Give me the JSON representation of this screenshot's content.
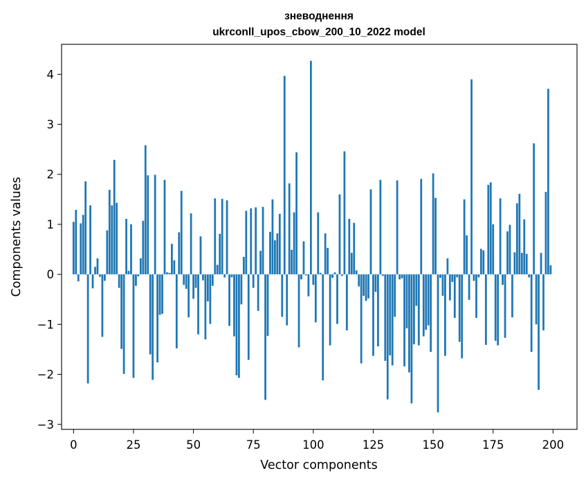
{
  "chart_data": {
    "type": "bar",
    "title": "зневоднення",
    "subtitle": "ukrconll_upos_cbow_200_10_2022 model",
    "xlabel": "Vector components",
    "ylabel": "Components values",
    "xlim": [
      -5,
      210
    ],
    "ylim": [
      -3.1,
      4.6
    ],
    "xticks": [
      0,
      25,
      50,
      75,
      100,
      125,
      150,
      175,
      200
    ],
    "yticks": [
      -3,
      -2,
      -1,
      0,
      1,
      2,
      3,
      4
    ],
    "xtick_labels": [
      "0",
      "25",
      "50",
      "75",
      "100",
      "125",
      "150",
      "175",
      "200"
    ],
    "ytick_labels": [
      "−3",
      "−2",
      "−1",
      "0",
      "1",
      "2",
      "3",
      "4"
    ],
    "bar_color": "#1f77b4",
    "grid": false,
    "x": [
      0,
      1,
      2,
      3,
      4,
      5,
      6,
      7,
      8,
      9,
      10,
      11,
      12,
      13,
      14,
      15,
      16,
      17,
      18,
      19,
      20,
      21,
      22,
      23,
      24,
      25,
      26,
      27,
      28,
      29,
      30,
      31,
      32,
      33,
      34,
      35,
      36,
      37,
      38,
      39,
      40,
      41,
      42,
      43,
      44,
      45,
      46,
      47,
      48,
      49,
      50,
      51,
      52,
      53,
      54,
      55,
      56,
      57,
      58,
      59,
      60,
      61,
      62,
      63,
      64,
      65,
      66,
      67,
      68,
      69,
      70,
      71,
      72,
      73,
      74,
      75,
      76,
      77,
      78,
      79,
      80,
      81,
      82,
      83,
      84,
      85,
      86,
      87,
      88,
      89,
      90,
      91,
      92,
      93,
      94,
      95,
      96,
      97,
      98,
      99,
      100,
      101,
      102,
      103,
      104,
      105,
      106,
      107,
      108,
      109,
      110,
      111,
      112,
      113,
      114,
      115,
      116,
      117,
      118,
      119,
      120,
      121,
      122,
      123,
      124,
      125,
      126,
      127,
      128,
      129,
      130,
      131,
      132,
      133,
      134,
      135,
      136,
      137,
      138,
      139,
      140,
      141,
      142,
      143,
      144,
      145,
      146,
      147,
      148,
      149,
      150,
      151,
      152,
      153,
      154,
      155,
      156,
      157,
      158,
      159,
      160,
      161,
      162,
      163,
      164,
      165,
      166,
      167,
      168,
      169,
      170,
      171,
      172,
      173,
      174,
      175,
      176,
      177,
      178,
      179,
      180,
      181,
      182,
      183,
      184,
      185,
      186,
      187,
      188,
      189,
      190,
      191,
      192,
      193,
      194,
      195,
      196,
      197,
      198,
      199
    ],
    "values": [
      1.05,
      1.29,
      -0.14,
      1.02,
      1.19,
      1.86,
      -2.18,
      1.38,
      -0.28,
      0.15,
      0.32,
      -0.05,
      -1.25,
      -0.13,
      0.88,
      1.69,
      1.38,
      2.29,
      1.43,
      -0.27,
      -1.49,
      -1.99,
      1.11,
      0.07,
      1.0,
      -2.07,
      -0.23,
      -0.04,
      0.32,
      1.07,
      2.58,
      1.98,
      -1.6,
      -2.11,
      1.99,
      -1.76,
      -0.81,
      -0.79,
      1.89,
      0.04,
      0.03,
      0.61,
      0.28,
      -1.48,
      0.84,
      1.67,
      -0.21,
      -0.29,
      -0.86,
      1.22,
      -0.49,
      -0.27,
      -1.2,
      0.76,
      -0.12,
      -1.3,
      -0.54,
      -0.99,
      -0.23,
      1.52,
      0.19,
      0.81,
      1.51,
      -0.06,
      1.48,
      -1.03,
      -0.06,
      -1.24,
      -2.02,
      -2.07,
      -0.6,
      0.35,
      1.27,
      -1.71,
      1.32,
      -0.27,
      1.34,
      -0.73,
      0.47,
      1.35,
      -2.51,
      -1.23,
      0.85,
      1.5,
      0.68,
      0.82,
      1.21,
      -0.85,
      3.97,
      -1.02,
      1.82,
      0.49,
      1.24,
      2.44,
      -1.46,
      -0.1,
      0.66,
      -0.02,
      -0.44,
      4.27,
      -0.21,
      -0.96,
      1.24,
      0.03,
      -2.12,
      0.82,
      0.53,
      -1.42,
      -0.07,
      0.04,
      -0.99,
      1.6,
      -0.03,
      2.46,
      -1.12,
      1.11,
      0.43,
      1.03,
      0.08,
      -0.24,
      -1.78,
      -0.43,
      -0.53,
      -0.48,
      1.7,
      -1.63,
      -0.35,
      -1.44,
      1.89,
      -0.03,
      -1.73,
      -2.5,
      -1.62,
      -1.82,
      -0.85,
      1.88,
      -0.1,
      -0.08,
      -1.84,
      -1.08,
      -1.96,
      -2.58,
      -1.4,
      -0.63,
      -1.42,
      1.91,
      -1.24,
      -1.11,
      -1.02,
      -1.55,
      2.02,
      1.53,
      -2.76,
      -0.07,
      -0.43,
      -1.63,
      0.32,
      -0.52,
      -0.15,
      -0.87,
      -0.06,
      -1.35,
      -1.68,
      1.5,
      0.78,
      -0.51,
      3.9,
      -0.13,
      -0.87,
      -0.06,
      0.51,
      0.48,
      -1.41,
      1.79,
      1.84,
      1.0,
      -1.33,
      -1.42,
      1.52,
      -0.21,
      -1.27,
      0.86,
      0.99,
      -0.86,
      0.44,
      1.42,
      1.61,
      0.43,
      1.1,
      0.41,
      -0.06,
      -1.55,
      2.62,
      -1.0,
      -2.31,
      0.43,
      -1.12,
      1.65,
      3.71,
      0.18
    ]
  }
}
